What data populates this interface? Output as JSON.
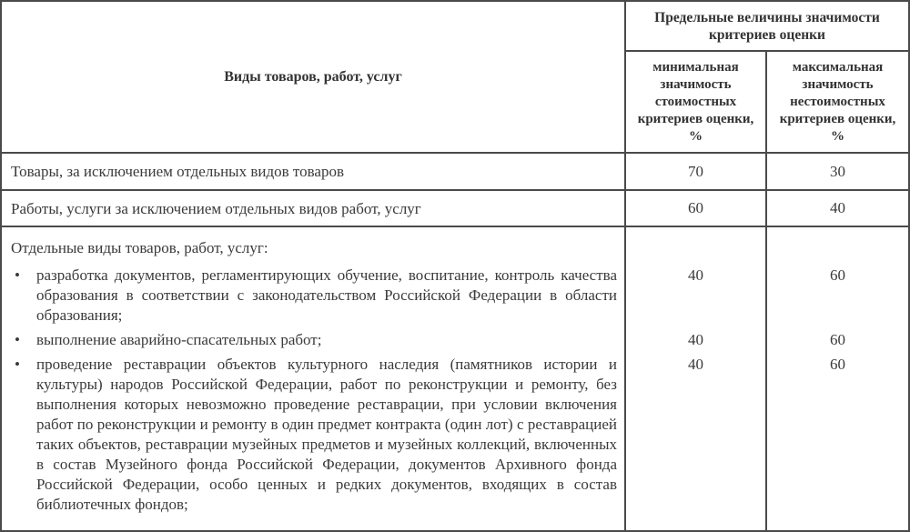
{
  "table": {
    "header": {
      "left": "Виды товаров, работ, услуг",
      "group": "Предельные величины значимости критериев оценки",
      "min": "минимальная значимость стоимостных критериев оценки, %",
      "max": "максимальная значимость нестоимостных критериев оценки, %"
    },
    "rows": [
      {
        "label": "Товары, за исключением отдельных видов товаров",
        "min": "70",
        "max": "30"
      },
      {
        "label": "Работы, услуги за исключением отдельных видов работ, услуг",
        "min": "60",
        "max": "40"
      }
    ],
    "group_row": {
      "intro": "Отдельные виды товаров, работ, услуг:",
      "bullet_char": "•",
      "bullets": [
        {
          "text": "разработка документов, регламентирующих обучение, воспитание, контроль качества образования в соответствии с законодательством Российской Федерации в области образования;",
          "min": "40",
          "max": "60"
        },
        {
          "text": "выполнение аварийно-спасательных работ;",
          "min": "40",
          "max": "60"
        },
        {
          "text": "проведение реставрации объектов культурного наследия (памятников истории и культуры) народов Российской Федерации, работ по реконструкции и ремонту, без выполнения которых невозможно проведение реставрации, при условии включения работ по реконструкции и ремонту в один предмет контракта (один лот) с реставрацией таких объектов, реставрации музейных предметов и музейных коллекций, включенных в состав Музейного фонда Российской Федерации, документов Архивного фонда Российской Федерации, особо ценных и редких документов, входящих в состав библиотечных фондов;",
          "min": "40",
          "max": "60"
        }
      ]
    },
    "colors": {
      "border": "#4a4a4a",
      "text": "#3a3a3a"
    }
  }
}
